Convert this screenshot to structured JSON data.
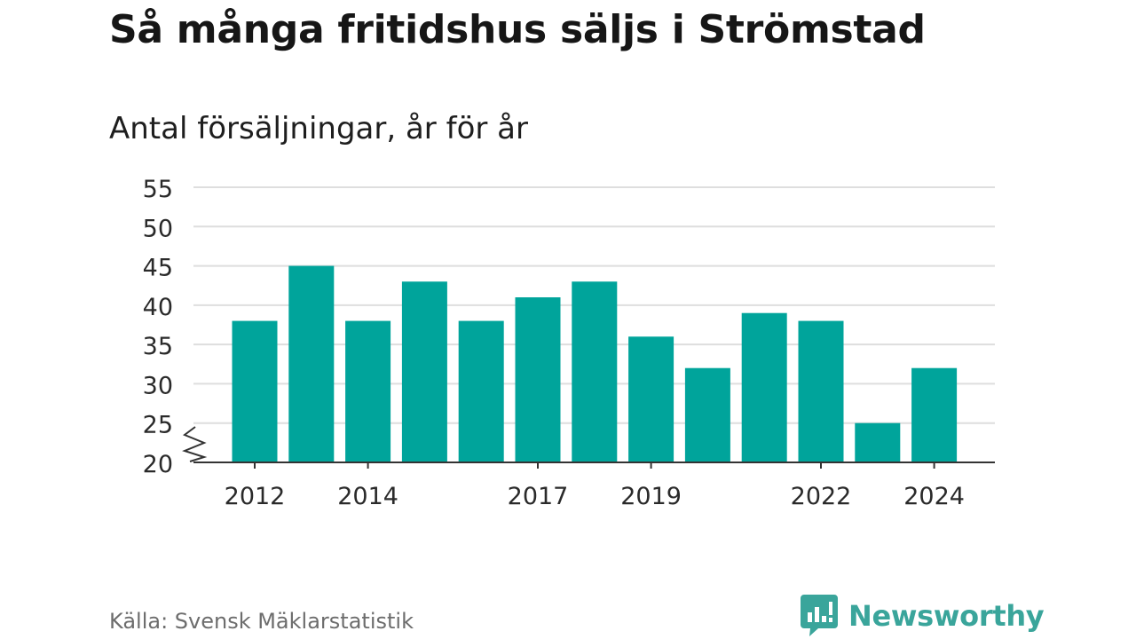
{
  "header": {
    "title": "Så många fritidshus säljs i Strömstad",
    "subtitle": "Antal försäljningar, år för år"
  },
  "footer": {
    "source": "Källa: Svensk Mäklarstatistik",
    "brand": "Newsworthy",
    "brand_icon": "newsworthy-chart-bubble-icon"
  },
  "colors": {
    "bar": "#00a49b",
    "grid": "#dedede",
    "axis": "#333333",
    "brand": "#3aa59b"
  },
  "chart_data": {
    "type": "bar",
    "x": [
      2012,
      2013,
      2014,
      2015,
      2016,
      2017,
      2018,
      2019,
      2020,
      2021,
      2022,
      2023,
      2024
    ],
    "values": [
      38,
      45,
      38,
      43,
      38,
      41,
      43,
      36,
      32,
      39,
      38,
      25,
      32
    ],
    "x_tick_labels": [
      "2012",
      "2014",
      "2017",
      "2019",
      "2022",
      "2024"
    ],
    "y_ticks": [
      20,
      25,
      30,
      35,
      40,
      45,
      50,
      55
    ],
    "ylim": [
      20,
      55
    ],
    "y_axis_break": true,
    "grid": true,
    "xlabel": "",
    "ylabel": ""
  }
}
